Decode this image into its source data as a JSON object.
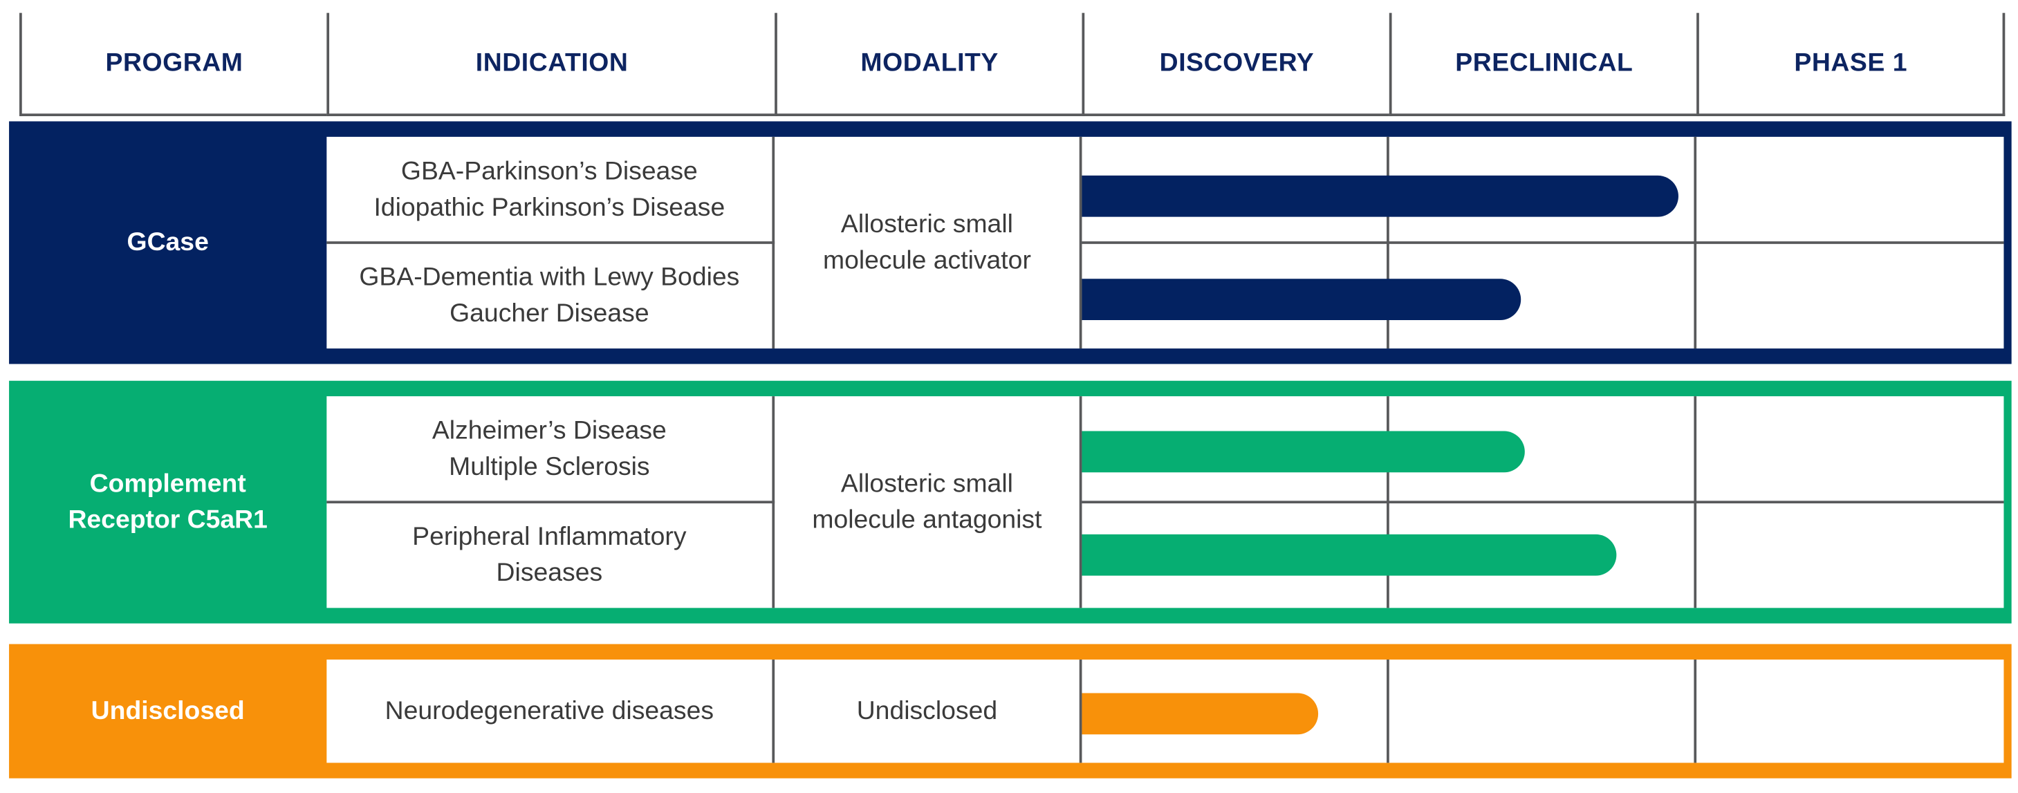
{
  "colors": {
    "navy": "#032261",
    "green": "#06ae72",
    "orange": "#f8910a",
    "header_text": "#0d2461",
    "grid": "#58595b"
  },
  "headers": [
    "PROGRAM",
    "INDICATION",
    "MODALITY",
    "DISCOVERY",
    "PRECLINICAL",
    "PHASE 1"
  ],
  "stage_scale": {
    "stages": [
      "DISCOVERY",
      "PRECLINICAL",
      "PHASE 1"
    ]
  },
  "programs": [
    {
      "name": "GCase",
      "color": "navy",
      "modality": "Allosteric small molecule activator",
      "indications": [
        {
          "label": "GBA-Parkinson’s Disease Idiopathic Parkinson’s Disease",
          "lines": [
            "GBA-Parkinson’s Disease",
            "Idiopathic Parkinson’s Disease"
          ],
          "progress_stages": 1.94
        },
        {
          "label": "GBA-Dementia with Lewy Bodies Gaucher Disease",
          "lines": [
            "GBA-Dementia with Lewy Bodies",
            "Gaucher Disease"
          ],
          "progress_stages": 1.43
        }
      ]
    },
    {
      "name": "Complement Receptor C5aR1",
      "color": "green",
      "modality": "Allosteric small molecule antagonist",
      "indications": [
        {
          "label": "Alzheimer’s Disease Multiple Sclerosis",
          "lines": [
            "Alzheimer’s Disease",
            "Multiple Sclerosis"
          ],
          "progress_stages": 1.44
        },
        {
          "label": "Peripheral Inflammatory Diseases",
          "lines": [
            "Peripheral Inflammatory",
            "Diseases"
          ],
          "progress_stages": 1.74
        }
      ]
    },
    {
      "name": "Undisclosed",
      "color": "orange",
      "modality": "Undisclosed",
      "indications": [
        {
          "label": "Neurodegenerative diseases",
          "lines": [
            "Neurodegenerative diseases"
          ],
          "progress_stages": 0.77
        }
      ]
    }
  ]
}
